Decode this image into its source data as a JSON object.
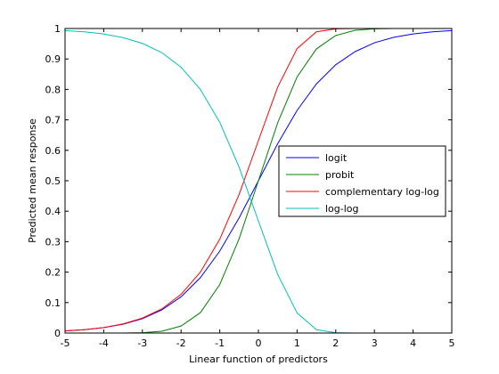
{
  "chart_data": {
    "type": "line",
    "xlabel": "Linear function of predictors",
    "ylabel": "Predicted mean response",
    "xlim": [
      -5,
      5
    ],
    "ylim": [
      0,
      1
    ],
    "xticks": [
      -5,
      -4,
      -3,
      -2,
      -1,
      0,
      1,
      2,
      3,
      4,
      5
    ],
    "yticks": [
      0,
      0.1,
      0.2,
      0.3,
      0.4,
      0.5,
      0.6,
      0.7,
      0.8,
      0.9,
      1
    ],
    "ytick_labels": [
      "0",
      "0.1",
      "0.2",
      "0.3",
      "0.4",
      "0.5",
      "0.6",
      "0.7",
      "0.8",
      "0.9",
      "1"
    ],
    "grid": false,
    "legend_position": "right",
    "x": [
      -5,
      -4.5,
      -4,
      -3.5,
      -3,
      -2.5,
      -2,
      -1.5,
      -1,
      -0.5,
      0,
      0.5,
      1,
      1.5,
      2,
      2.5,
      3,
      3.5,
      4,
      4.5,
      5
    ],
    "series": [
      {
        "name": "logit",
        "color": "#0000ff",
        "values": [
          0.007,
          0.011,
          0.018,
          0.029,
          0.047,
          0.076,
          0.119,
          0.182,
          0.269,
          0.378,
          0.5,
          0.622,
          0.731,
          0.818,
          0.881,
          0.924,
          0.953,
          0.971,
          0.982,
          0.989,
          0.993
        ]
      },
      {
        "name": "probit",
        "color": "#008000",
        "values": [
          0.0,
          0.0,
          0.0,
          0.0,
          0.001,
          0.006,
          0.023,
          0.067,
          0.159,
          0.309,
          0.5,
          0.691,
          0.841,
          0.933,
          0.977,
          0.994,
          0.999,
          1.0,
          1.0,
          1.0,
          1.0
        ]
      },
      {
        "name": "complementary log-log",
        "color": "#ff0000",
        "values": [
          0.007,
          0.011,
          0.018,
          0.03,
          0.049,
          0.079,
          0.127,
          0.2,
          0.308,
          0.455,
          0.632,
          0.808,
          0.934,
          0.989,
          0.999,
          1.0,
          1.0,
          1.0,
          1.0,
          1.0,
          1.0
        ]
      },
      {
        "name": "log-log",
        "color": "#00bfbf",
        "values": [
          0.993,
          0.989,
          0.982,
          0.97,
          0.951,
          0.921,
          0.873,
          0.8,
          0.692,
          0.545,
          0.368,
          0.192,
          0.066,
          0.011,
          0.001,
          0.0,
          0.0,
          0.0,
          0.0,
          0.0,
          0.0
        ]
      }
    ]
  }
}
